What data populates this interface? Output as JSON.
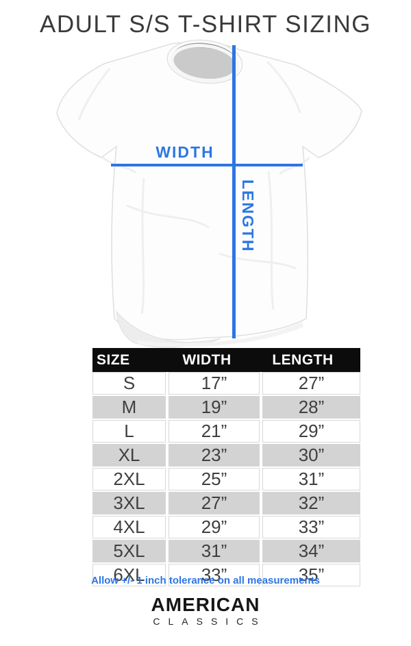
{
  "title": "ADULT S/S T-SHIRT SIZING",
  "diagram": {
    "width_label": "WIDTH",
    "length_label": "LENGTH",
    "accent_color": "#2d76e3"
  },
  "size_table": {
    "headers": [
      "SIZE",
      "WIDTH",
      "LENGTH"
    ],
    "rows": [
      [
        "S",
        "17”",
        "27”"
      ],
      [
        "M",
        "19”",
        "28”"
      ],
      [
        "L",
        "21”",
        "29”"
      ],
      [
        "XL",
        "23”",
        "30”"
      ],
      [
        "2XL",
        "25”",
        "31”"
      ],
      [
        "3XL",
        "27”",
        "32”"
      ],
      [
        "4XL",
        "29”",
        "33”"
      ],
      [
        "5XL",
        "31”",
        "34”"
      ],
      [
        "6XL",
        "33”",
        "35”"
      ]
    ]
  },
  "note": "Allow +/- 1 inch tolerance on all measurements",
  "brand": {
    "line1": "AMERICAN",
    "line2": "CLASSICS"
  }
}
